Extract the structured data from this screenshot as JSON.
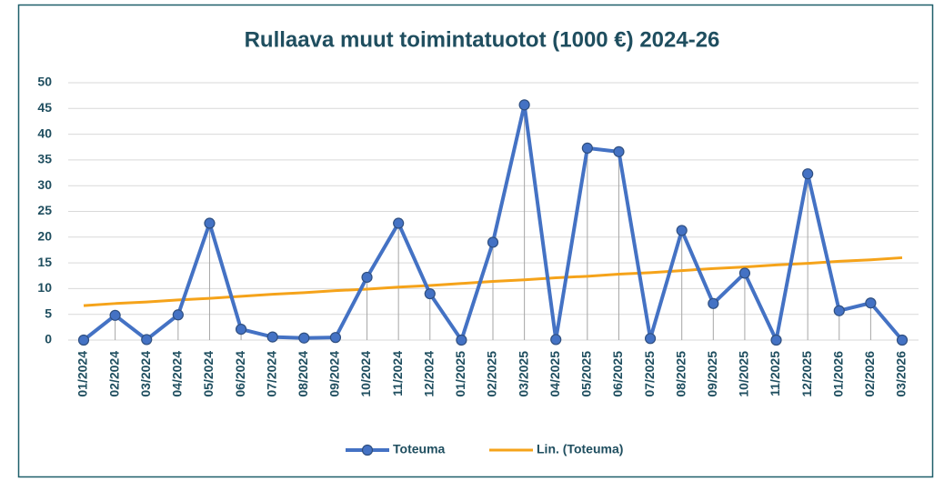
{
  "chart_data": {
    "type": "line",
    "title": "Rullaava muut toimintatuotot (1000 €) 2024-26",
    "categories": [
      "01/2024",
      "02/2024",
      "03/2024",
      "04/2024",
      "05/2024",
      "06/2024",
      "07/2024",
      "08/2024",
      "09/2024",
      "10/2024",
      "11/2024",
      "12/2024",
      "01/2025",
      "02/2025",
      "03/2025",
      "04/2025",
      "05/2025",
      "06/2025",
      "07/2025",
      "08/2025",
      "09/2025",
      "10/2025",
      "11/2025",
      "12/2025",
      "01/2026",
      "02/2026",
      "03/2026"
    ],
    "series": [
      {
        "name": "Toteuma",
        "color": "#4472c4",
        "marker": true,
        "drop_lines": true,
        "values": [
          0,
          4.8,
          0.1,
          4.9,
          22.7,
          2.1,
          0.6,
          0.4,
          0.5,
          12.2,
          22.7,
          9,
          0,
          19,
          45.7,
          0.1,
          37.3,
          36.6,
          0.3,
          21.3,
          7.1,
          13,
          0,
          32.3,
          5.7,
          7.2,
          0
        ]
      },
      {
        "name": "Lin. (Toteuma)",
        "color": "#f5a31a",
        "marker": false,
        "drop_lines": false,
        "values": [
          6.7,
          7.1,
          7.4,
          7.8,
          8.1,
          8.5,
          8.9,
          9.2,
          9.6,
          9.9,
          10.3,
          10.6,
          11.0,
          11.4,
          11.7,
          12.1,
          12.4,
          12.8,
          13.1,
          13.5,
          13.9,
          14.2,
          14.6,
          14.9,
          15.3,
          15.6,
          16.0
        ]
      }
    ],
    "ylim": [
      0,
      50
    ],
    "yticks": [
      0,
      5,
      10,
      15,
      20,
      25,
      30,
      35,
      40,
      45,
      50
    ],
    "grid": true,
    "legend": "bottom"
  }
}
